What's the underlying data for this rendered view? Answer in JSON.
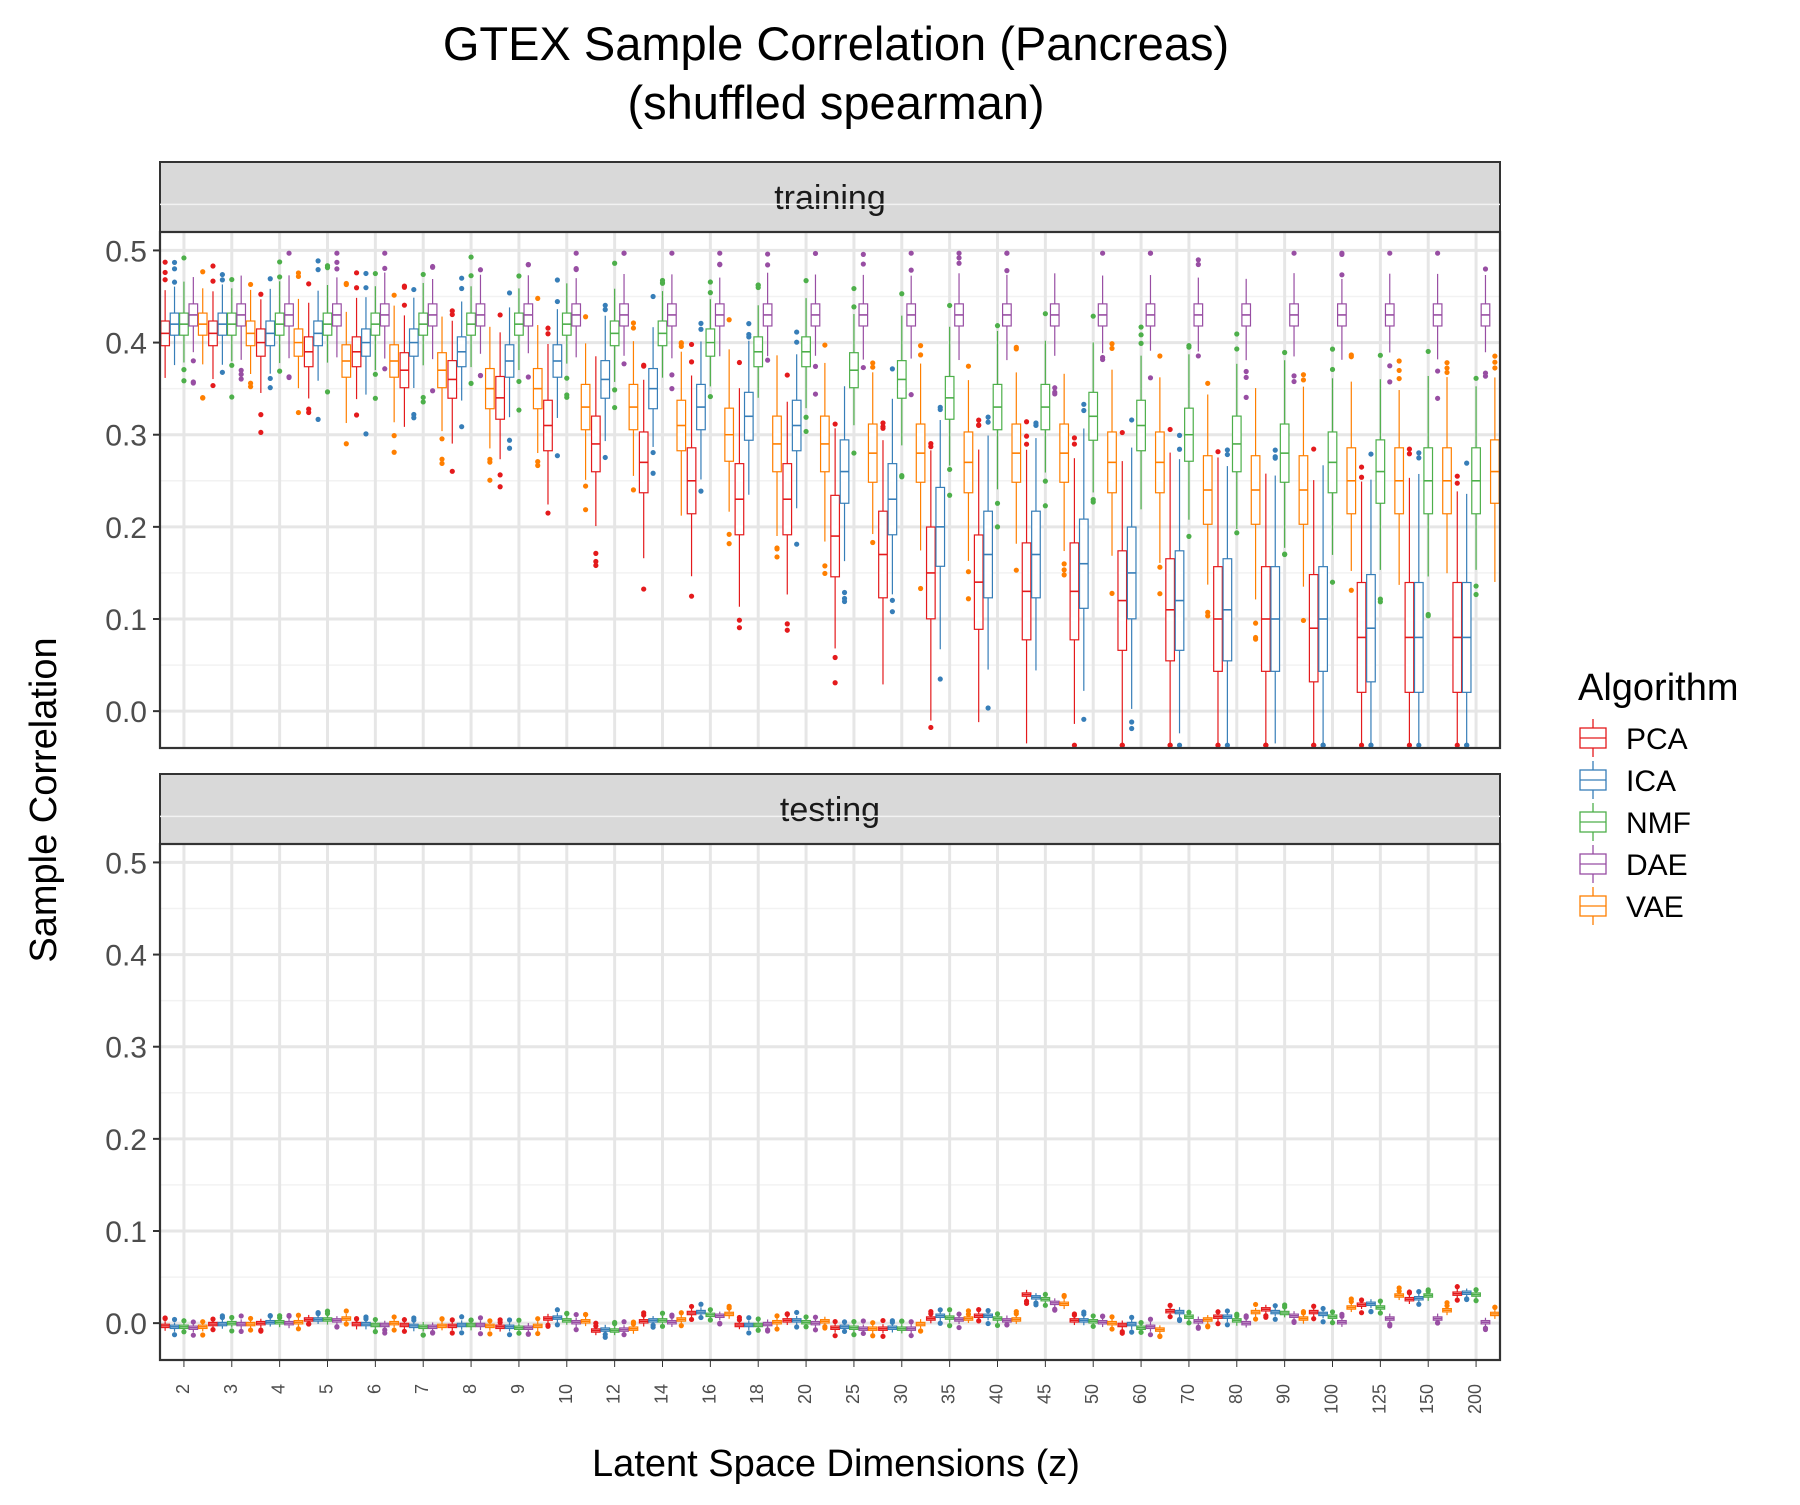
{
  "chart_data": {
    "type": "boxplot",
    "title": "GTEX Sample Correlation (Pancreas)",
    "subtitle": "(shuffled spearman)",
    "xlabel": "Latent Space Dimensions (z)",
    "ylabel": "Sample Correlation",
    "ylim": [
      -0.04,
      0.52
    ],
    "yticks": [
      "0.0",
      "0.1",
      "0.2",
      "0.3",
      "0.4",
      "0.5"
    ],
    "categories": [
      "2",
      "3",
      "4",
      "5",
      "6",
      "7",
      "8",
      "9",
      "10",
      "12",
      "14",
      "16",
      "18",
      "20",
      "25",
      "30",
      "35",
      "40",
      "45",
      "50",
      "60",
      "70",
      "80",
      "90",
      "100",
      "125",
      "150",
      "200"
    ],
    "legend": {
      "title": "Algorithm",
      "position": "right",
      "entries": [
        {
          "name": "PCA",
          "color": "#e41a1c"
        },
        {
          "name": "ICA",
          "color": "#377eb8"
        },
        {
          "name": "NMF",
          "color": "#4daf4a"
        },
        {
          "name": "DAE",
          "color": "#984ea3"
        },
        {
          "name": "VAE",
          "color": "#ff7f00"
        }
      ]
    },
    "grid": true,
    "panels": [
      {
        "label": "training",
        "series": [
          {
            "name": "PCA",
            "median": [
              0.41,
              0.41,
              0.4,
              0.39,
              0.39,
              0.37,
              0.36,
              0.34,
              0.31,
              0.29,
              0.27,
              0.25,
              0.23,
              0.23,
              0.19,
              0.17,
              0.15,
              0.14,
              0.13,
              0.13,
              0.12,
              0.11,
              0.1,
              0.1,
              0.09,
              0.08,
              0.08,
              0.08
            ]
          },
          {
            "name": "ICA",
            "median": [
              0.42,
              0.42,
              0.41,
              0.41,
              0.4,
              0.4,
              0.39,
              0.38,
              0.38,
              0.36,
              0.35,
              0.33,
              0.32,
              0.31,
              0.26,
              0.23,
              0.2,
              0.17,
              0.17,
              0.16,
              0.15,
              0.12,
              0.11,
              0.1,
              0.1,
              0.09,
              0.08,
              0.08
            ]
          },
          {
            "name": "NMF",
            "median": [
              0.42,
              0.42,
              0.42,
              0.42,
              0.42,
              0.42,
              0.42,
              0.42,
              0.42,
              0.41,
              0.41,
              0.4,
              0.39,
              0.39,
              0.37,
              0.36,
              0.34,
              0.33,
              0.33,
              0.32,
              0.31,
              0.3,
              0.29,
              0.28,
              0.27,
              0.26,
              0.25,
              0.25
            ]
          },
          {
            "name": "DAE",
            "median": [
              0.43,
              0.43,
              0.43,
              0.43,
              0.43,
              0.43,
              0.43,
              0.43,
              0.43,
              0.43,
              0.43,
              0.43,
              0.43,
              0.43,
              0.43,
              0.43,
              0.43,
              0.43,
              0.43,
              0.43,
              0.43,
              0.43,
              0.43,
              0.43,
              0.43,
              0.43,
              0.43,
              0.43
            ]
          },
          {
            "name": "VAE",
            "median": [
              0.42,
              0.41,
              0.4,
              0.38,
              0.38,
              0.37,
              0.35,
              0.35,
              0.33,
              0.33,
              0.31,
              0.3,
              0.29,
              0.29,
              0.28,
              0.28,
              0.27,
              0.28,
              0.28,
              0.27,
              0.27,
              0.24,
              0.24,
              0.24,
              0.25,
              0.25,
              0.25,
              0.26
            ]
          }
        ]
      },
      {
        "label": "testing",
        "series": [
          {
            "name": "PCA",
            "median": [
              -0.003,
              -0.001,
              0.0,
              0.004,
              -0.001,
              -0.002,
              -0.003,
              -0.004,
              0.005,
              -0.008,
              0.002,
              0.011,
              -0.002,
              0.003,
              -0.005,
              -0.006,
              0.005,
              0.008,
              0.031,
              0.003,
              -0.002,
              0.013,
              0.007,
              0.015,
              0.012,
              0.02,
              0.026,
              0.032
            ]
          },
          {
            "name": "ICA",
            "median": [
              -0.004,
              -0.001,
              0.001,
              0.004,
              -0.001,
              -0.003,
              -0.002,
              -0.004,
              0.006,
              -0.007,
              0.003,
              0.012,
              -0.002,
              0.003,
              -0.004,
              -0.005,
              0.008,
              0.008,
              0.028,
              0.003,
              -0.001,
              0.012,
              0.007,
              0.012,
              0.01,
              0.021,
              0.027,
              0.033
            ]
          },
          {
            "name": "NMF",
            "median": [
              -0.004,
              0.0,
              0.001,
              0.004,
              -0.002,
              -0.004,
              -0.002,
              -0.005,
              0.003,
              -0.008,
              0.003,
              0.009,
              -0.002,
              0.001,
              -0.005,
              -0.006,
              0.006,
              0.005,
              0.026,
              0.002,
              -0.005,
              0.007,
              0.003,
              0.011,
              0.007,
              0.017,
              0.03,
              0.031
            ]
          },
          {
            "name": "DAE",
            "median": [
              -0.005,
              -0.001,
              0.0,
              0.003,
              -0.002,
              -0.004,
              -0.002,
              -0.005,
              0.001,
              -0.007,
              0.001,
              0.008,
              -0.001,
              0.0,
              -0.006,
              -0.006,
              0.004,
              0.003,
              0.022,
              0.001,
              -0.004,
              0.002,
              0.0,
              0.008,
              0.001,
              0.005,
              0.005,
              0.001
            ]
          },
          {
            "name": "VAE",
            "median": [
              -0.004,
              -0.001,
              0.001,
              0.005,
              0.0,
              -0.003,
              -0.003,
              -0.003,
              0.002,
              -0.006,
              0.004,
              0.01,
              0.001,
              0.002,
              -0.006,
              -0.001,
              0.005,
              0.004,
              0.021,
              0.0,
              -0.007,
              0.004,
              0.012,
              0.005,
              0.017,
              0.03,
              0.014,
              0.01
            ]
          }
        ]
      }
    ]
  }
}
